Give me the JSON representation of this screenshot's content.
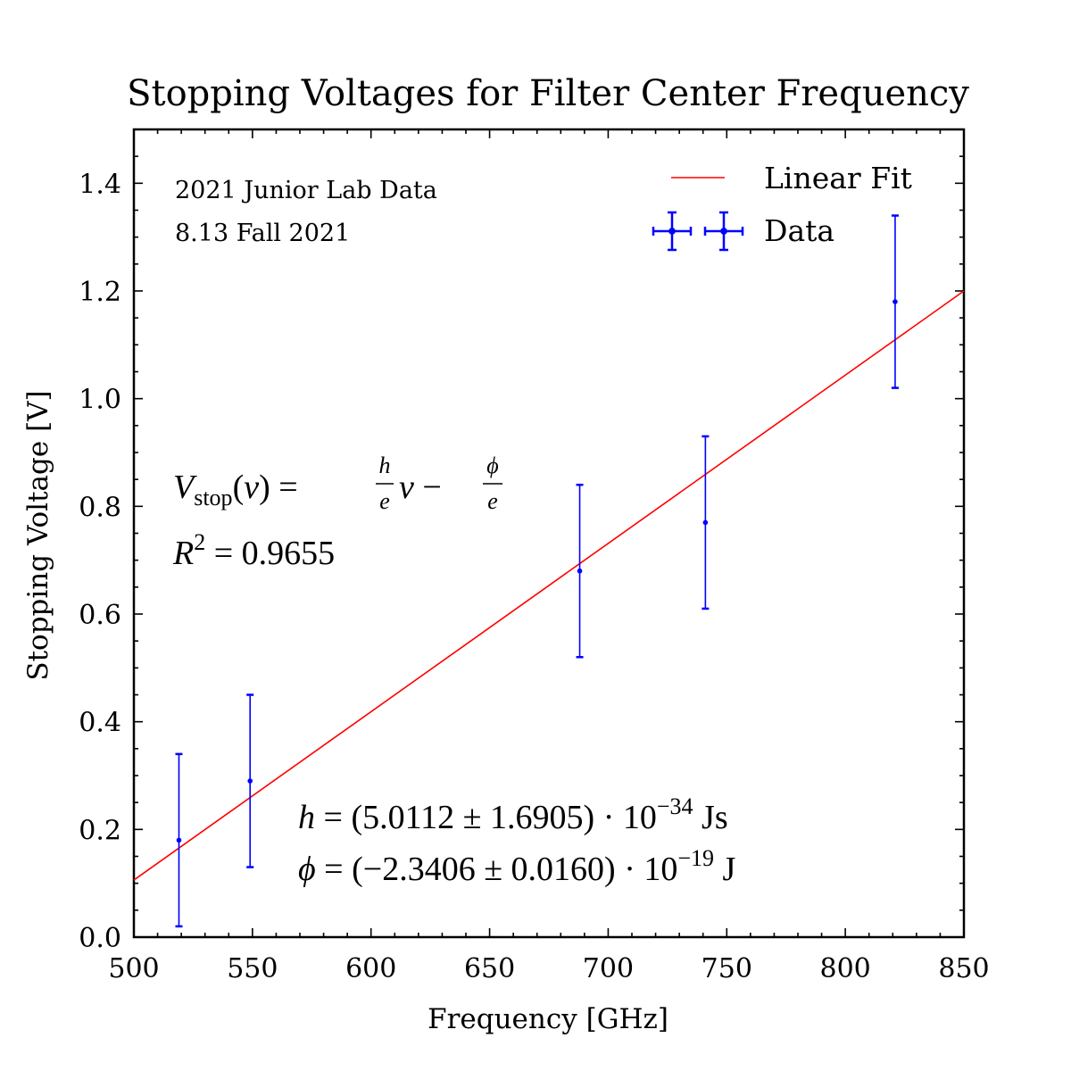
{
  "chart_data": {
    "type": "scatter",
    "title": "Stopping Voltages for Filter Center Frequency",
    "xlabel": "Frequency [GHz]",
    "ylabel": "Stopping Voltage [V]",
    "xlim": [
      500,
      850
    ],
    "ylim": [
      0.0,
      1.5
    ],
    "x_ticks": [
      "500",
      "550",
      "600",
      "650",
      "700",
      "750",
      "800",
      "850"
    ],
    "y_ticks": [
      "0.0",
      "0.2",
      "0.4",
      "0.6",
      "0.8",
      "1.0",
      "1.2",
      "1.4"
    ],
    "grid": false,
    "legend_position": "top-right",
    "series": [
      {
        "name": "Data",
        "kind": "errorbar",
        "color": "#0000ff",
        "x": [
          519,
          549,
          688,
          741,
          821
        ],
        "y": [
          0.18,
          0.29,
          0.68,
          0.77,
          1.18
        ],
        "yerr": [
          0.16,
          0.16,
          0.16,
          0.16,
          0.16
        ]
      },
      {
        "name": "Linear Fit",
        "kind": "line",
        "color": "#ff0000",
        "x": [
          500,
          850
        ],
        "y": [
          0.106,
          1.2
        ]
      }
    ],
    "annotations": {
      "top_left_line1": "2021 Junior Lab Data",
      "top_left_line2": "8.13 Fall 2021",
      "r_squared": "0.9655",
      "h_value": "(5.0112 ± 1.6905) · 10",
      "h_exponent": "−34",
      "h_unit": "Js",
      "phi_value": "(−2.3406 ± 0.0160) · 10",
      "phi_exponent": "−19",
      "phi_unit": "J"
    }
  }
}
